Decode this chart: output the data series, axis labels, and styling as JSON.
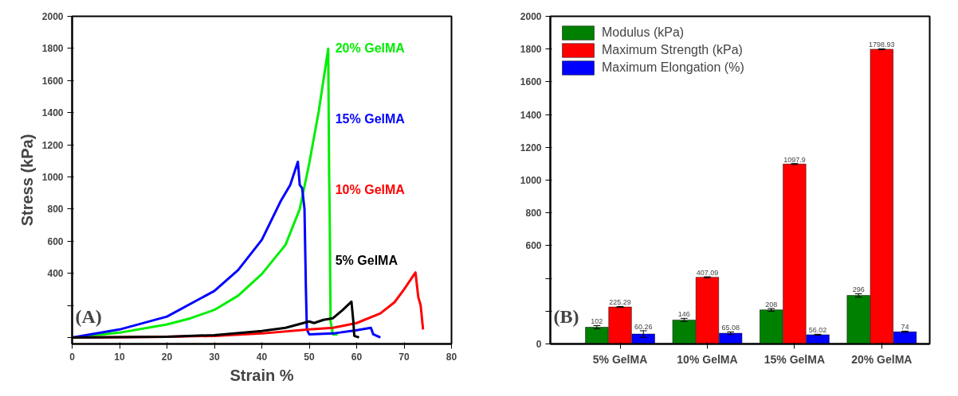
{
  "chart_data": [
    {
      "type": "line",
      "xlabel": "Strain %",
      "ylabel": "Stress (kPa)",
      "xlim": [
        0,
        80
      ],
      "ylim": [
        -40,
        2000
      ],
      "xticks": [
        0,
        10,
        20,
        30,
        40,
        50,
        60,
        70,
        80
      ],
      "yticks": [
        {
          "value": 0,
          "label": null
        },
        {
          "value": 200,
          "label": null
        },
        400,
        600,
        800,
        1000,
        1200,
        1400,
        1600,
        1800,
        2000
      ],
      "grid": false,
      "legend": false,
      "line_style": "solid",
      "marker": "none",
      "annotations": [
        "(A)"
      ],
      "series": [
        {
          "name": "5% GelMA",
          "color": "#000000",
          "x": [
            0,
            20,
            30,
            40,
            45,
            50,
            51,
            53,
            55,
            57,
            58.9,
            59.3,
            59.5,
            60.5
          ],
          "values": [
            0,
            5,
            15,
            40,
            60,
            100,
            90,
            110,
            120,
            170,
            223,
            100,
            10,
            0
          ]
        },
        {
          "name": "10% GelMA",
          "color": "#ff0000",
          "x": [
            0,
            20,
            30,
            40,
            50,
            55,
            60,
            65,
            68,
            70,
            72.4,
            73,
            73.5,
            74
          ],
          "values": [
            0,
            5,
            10,
            25,
            50,
            60,
            90,
            150,
            220,
            300,
            405,
            250,
            200,
            50
          ]
        },
        {
          "name": "15% GelMA",
          "color": "#0000ff",
          "x": [
            0,
            10,
            20,
            30,
            35,
            40,
            44,
            46,
            47.6,
            48,
            48.5,
            49,
            49.3,
            49.5,
            50,
            55,
            60,
            63,
            63.5,
            65
          ],
          "values": [
            0,
            50,
            130,
            290,
            420,
            608,
            850,
            950,
            1094,
            950,
            930,
            800,
            300,
            50,
            20,
            25,
            45,
            60,
            20,
            0
          ]
        },
        {
          "name": "20% GelMA",
          "color": "#00ee00",
          "x": [
            0,
            10,
            20,
            25,
            30,
            35,
            40,
            45,
            48,
            50,
            52,
            53.5,
            54,
            54.2,
            54.3,
            54.5,
            55,
            56
          ],
          "values": [
            0,
            30,
            81,
            120,
            172,
            260,
            395,
            577,
            800,
            1084,
            1408,
            1700,
            1798,
            1000,
            800,
            100,
            20,
            20
          ]
        }
      ]
    },
    {
      "type": "bar",
      "categories": [
        "5% GelMA",
        "10% GelMA",
        "15% GelMA",
        "20% GelMA"
      ],
      "ylim": [
        0,
        2000
      ],
      "yticks": [
        0,
        {
          "value": 200,
          "label": null
        },
        {
          "value": 400,
          "label": null
        },
        600,
        800,
        1000,
        1200,
        1400,
        1600,
        1800,
        2000
      ],
      "grid": false,
      "legend": "top left",
      "data_labels": true,
      "annotations": [
        "(B)"
      ],
      "series": [
        {
          "name": "Modulus (kPa)",
          "color": "#008000",
          "values": [
            102,
            146,
            208,
            296
          ],
          "errors": [
            10,
            10,
            8,
            10
          ]
        },
        {
          "name": "Maximum Strength (kPa)",
          "color": "#ff0000",
          "values": [
            225.29,
            407.09,
            1097.9,
            1798.93
          ],
          "errors": [
            3,
            3,
            3,
            3
          ]
        },
        {
          "name": "Maximum Elongation (%)",
          "color": "#0000ff",
          "values": [
            60.26,
            65.08,
            56.02,
            74
          ],
          "errors": [
            20,
            8,
            3,
            4
          ]
        }
      ]
    }
  ]
}
